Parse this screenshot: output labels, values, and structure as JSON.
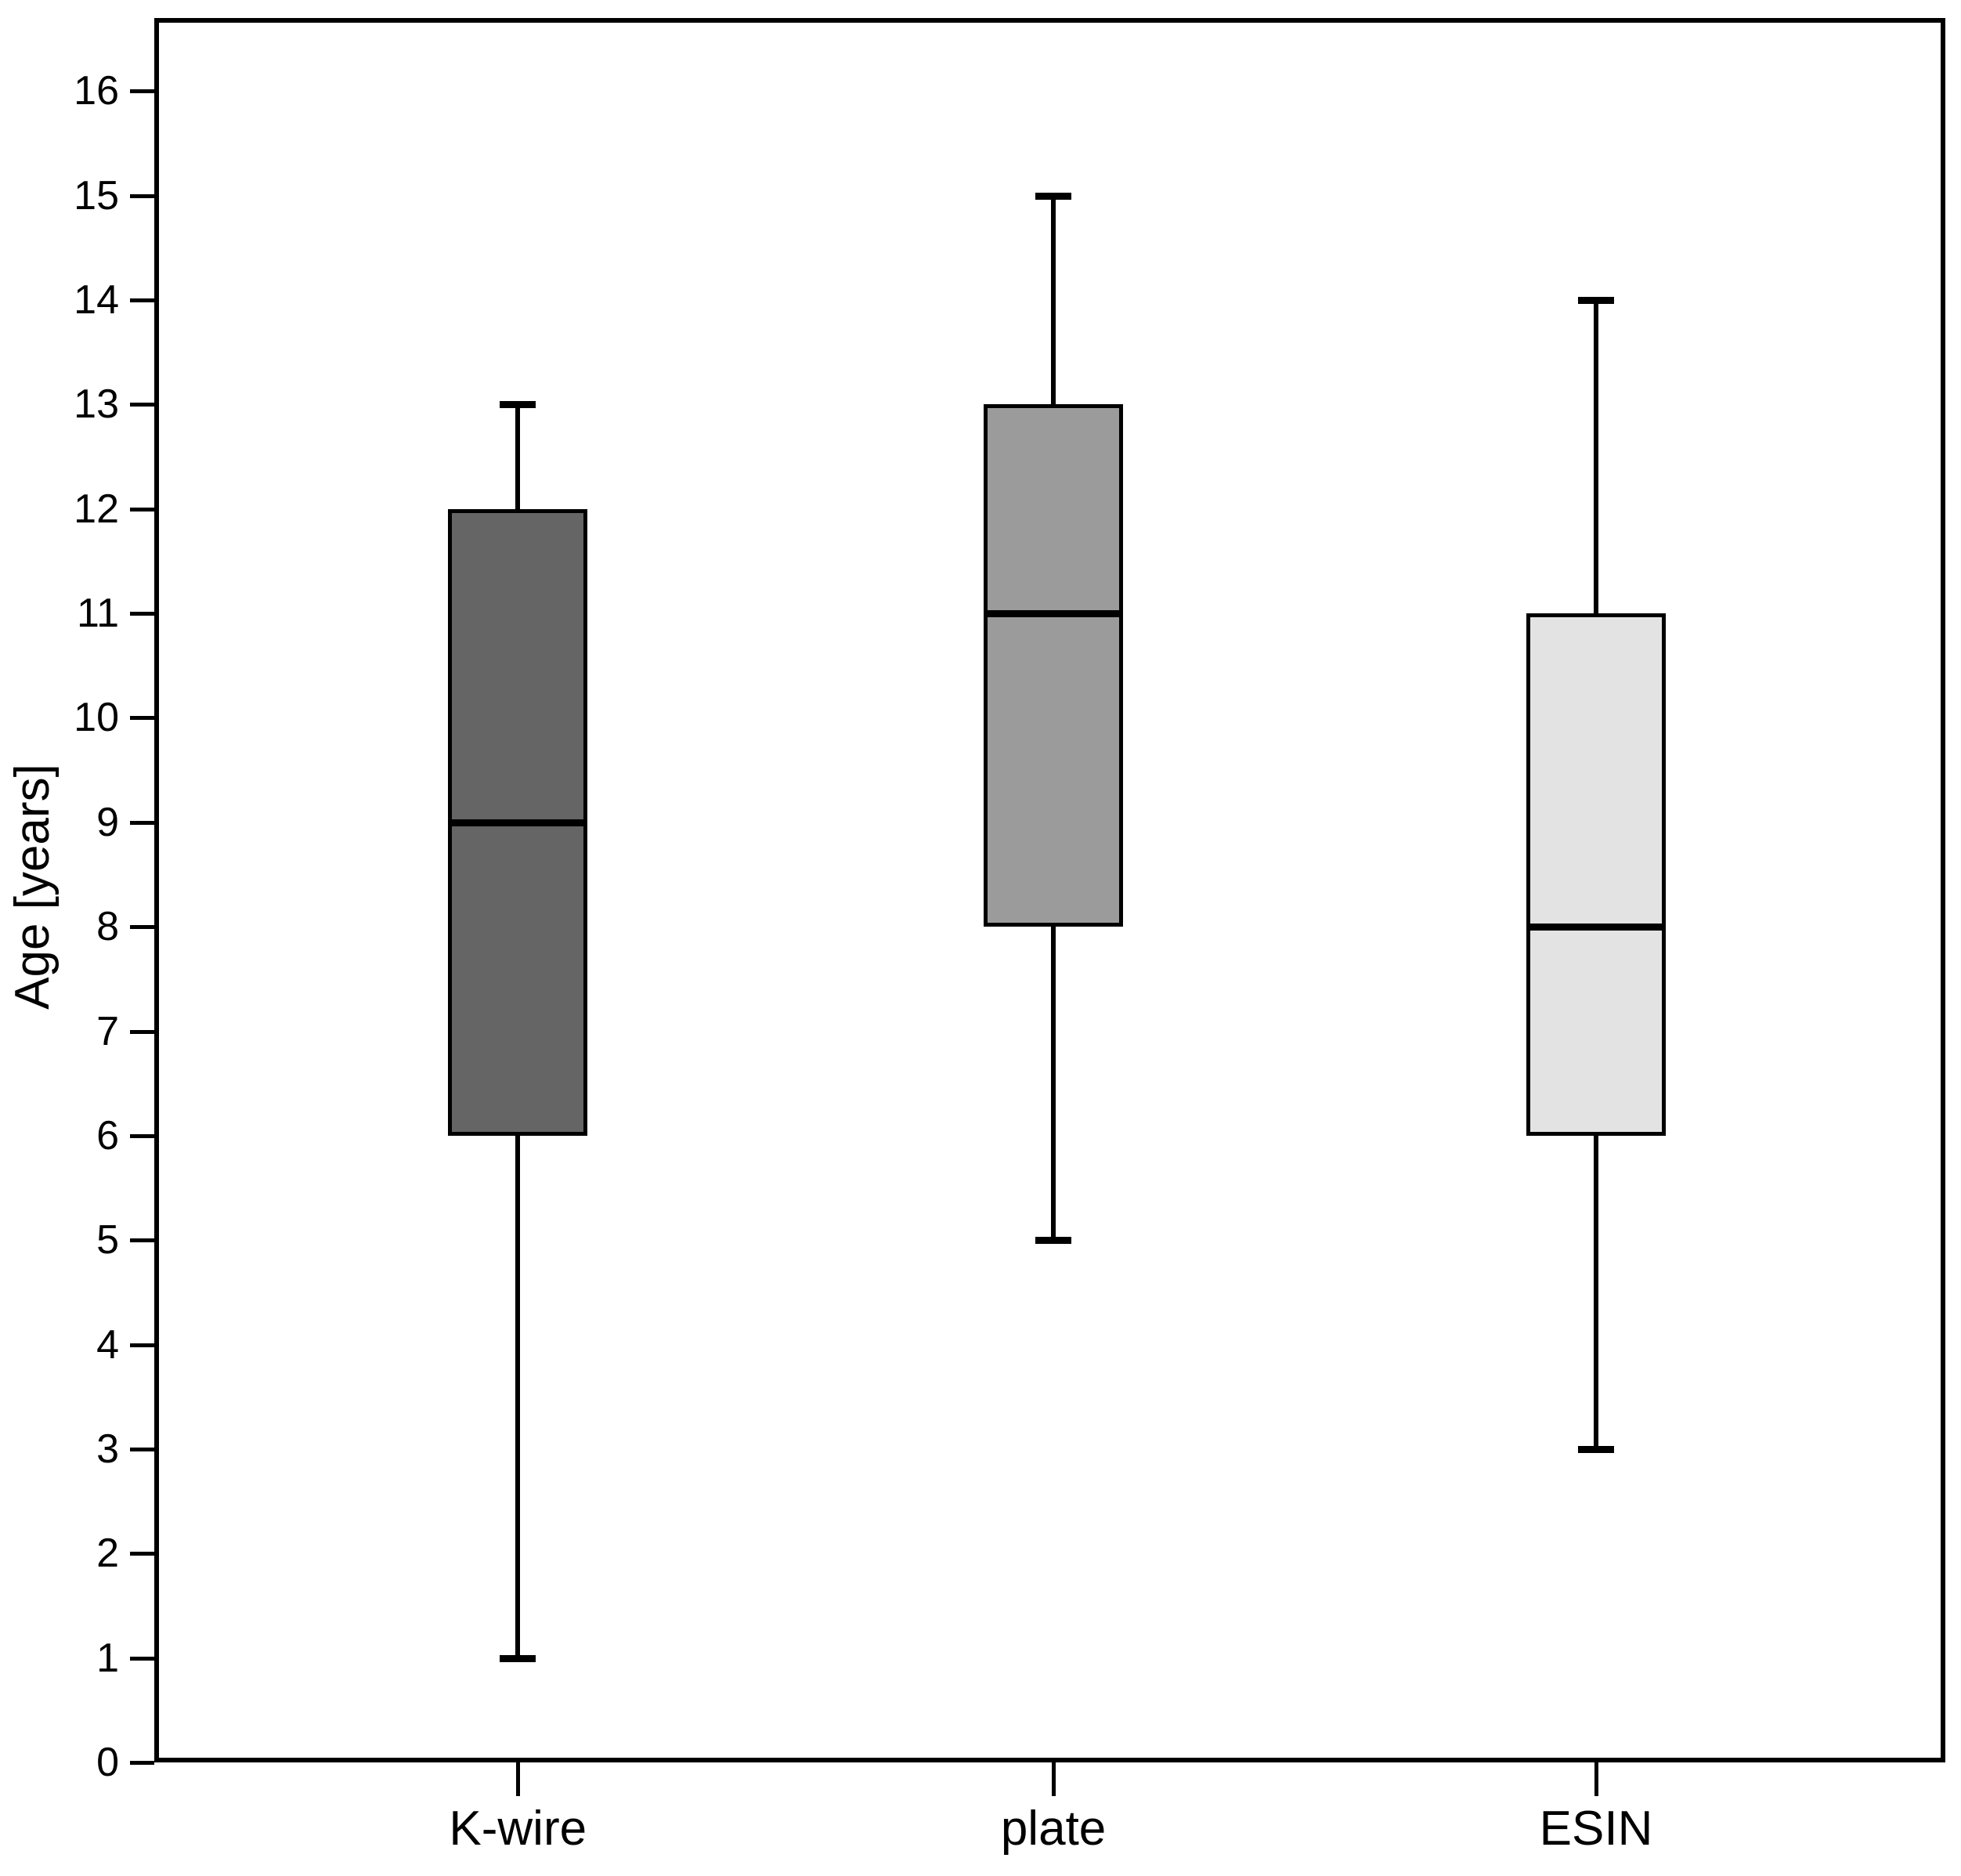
{
  "figure": {
    "background_color": "#ffffff",
    "frame_color": "#000000"
  },
  "chart_data": {
    "type": "boxplot",
    "title": "",
    "xlabel": "",
    "ylabel": "Age [years]",
    "ylim": [
      0,
      16.7
    ],
    "yticks": [
      0,
      1,
      2,
      3,
      4,
      5,
      6,
      7,
      8,
      9,
      10,
      11,
      12,
      13,
      14,
      15,
      16
    ],
    "grid": false,
    "legend": null,
    "categories": [
      "K-wire",
      "plate",
      "ESIN"
    ],
    "series": [
      {
        "category": "K-wire",
        "whisker_low": 1,
        "q1": 6,
        "median": 9,
        "q3": 12,
        "whisker_high": 13,
        "fill": "#656565"
      },
      {
        "category": "plate",
        "whisker_low": 5,
        "q1": 8,
        "median": 11,
        "q3": 13,
        "whisker_high": 15,
        "fill": "#9b9b9b"
      },
      {
        "category": "ESIN",
        "whisker_low": 3,
        "q1": 6,
        "median": 8,
        "q3": 11,
        "whisker_high": 14,
        "fill": "#e3e3e3"
      }
    ]
  }
}
